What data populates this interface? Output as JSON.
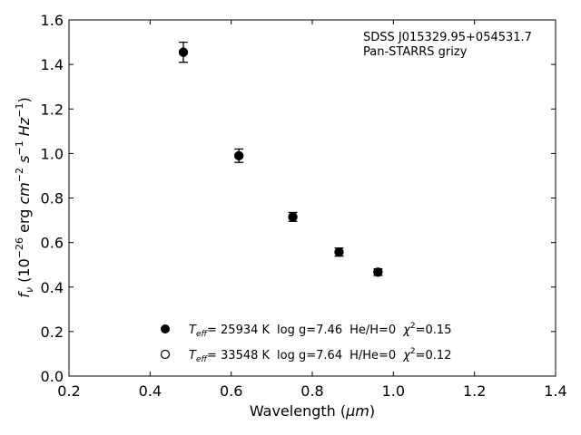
{
  "chart_data": {
    "type": "scatter",
    "title": "",
    "xlabel": "Wavelength",
    "xlabel_unit": "μm",
    "ylabel_prefix": "(10",
    "ylabel_exp": "−26",
    "ylabel_unit": "erg",
    "xlim": [
      0.2,
      1.4
    ],
    "ylim": [
      0.0,
      1.6
    ],
    "xticks": [
      "0.2",
      "0.4",
      "0.6",
      "0.8",
      "1.0",
      "1.2",
      "1.4"
    ],
    "yticks": [
      "0.0",
      "0.2",
      "0.4",
      "0.6",
      "0.8",
      "1.0",
      "1.2",
      "1.4",
      "1.6"
    ],
    "grid": false,
    "annotations": [
      "SDSS J015329.95+054531.7",
      "Pan-STARRS grizy"
    ],
    "series": [
      {
        "marker": "filled-circle",
        "color": "#000000",
        "x": [
          0.482,
          0.619,
          0.752,
          0.866,
          0.962
        ],
        "y": [
          1.455,
          0.99,
          0.715,
          0.557,
          0.467
        ],
        "yerr": [
          0.045,
          0.03,
          0.02,
          0.018,
          0.015
        ]
      },
      {
        "marker": "open-circle",
        "color": "#000000",
        "x": [
          0.482,
          0.619,
          0.752,
          0.866,
          0.962
        ],
        "y": [
          1.455,
          0.99,
          0.715,
          0.557,
          0.467
        ]
      }
    ],
    "legend": {
      "placement": "lower-center",
      "entries": [
        {
          "marker": "filled-circle",
          "teff": "= 25934 K",
          "logg": "log g=7.46",
          "comp": "He/H=0",
          "chi2": "=0.15"
        },
        {
          "marker": "open-circle",
          "teff": "= 33548 K",
          "logg": "log g=7.64",
          "comp": "H/He=0",
          "chi2": "=0.12"
        }
      ]
    }
  }
}
